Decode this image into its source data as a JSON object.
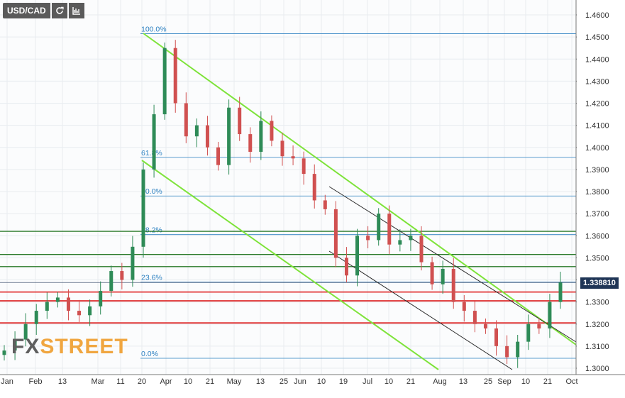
{
  "symbol": "USD/CAD",
  "toolbar": {
    "refresh_icon": "refresh-icon",
    "indicator_icon": "chart-settings-icon"
  },
  "logo": {
    "text_main": "FX",
    "text_accent": "STREET"
  },
  "current_price": "1.338810",
  "colors": {
    "up": "#2e8b57",
    "down": "#d05050",
    "grid": "#e8ecf0",
    "channel": "#7ee33a",
    "channel_dark": "#2b2b2b",
    "fib": "#2a7fc0",
    "support_red": "#dd1111",
    "resist_green": "#2a7a2a",
    "price_tag": "#1f3556"
  },
  "chart_data": {
    "type": "candlestick",
    "y_ticks": [
      "1.4600",
      "1.4500",
      "1.4400",
      "1.4300",
      "1.4200",
      "1.4100",
      "1.4000",
      "1.3900",
      "1.3800",
      "1.3700",
      "1.3600",
      "1.3500",
      "1.3400",
      "1.3300",
      "1.3200",
      "1.3100",
      "1.3000"
    ],
    "x_ticks": [
      "Jan",
      "Feb",
      "13",
      "Mar",
      "11",
      "20",
      "Apr",
      "10",
      "21",
      "May",
      "13",
      "25",
      "Jun",
      "10",
      "19",
      "Jul",
      "10",
      "21",
      "Aug",
      "13",
      "25",
      "Sep",
      "10",
      "21",
      "Oct"
    ],
    "fib_levels": [
      {
        "label": "100.0%",
        "value": 1.4515
      },
      {
        "label": "61.8%",
        "value": 1.3955
      },
      {
        "label": "50.0%",
        "value": 1.378
      },
      {
        "label": "38.2%",
        "value": 1.3605
      },
      {
        "label": "23.6%",
        "value": 1.339
      },
      {
        "label": "0.0%",
        "value": 1.3045
      }
    ],
    "green_levels": [
      1.362,
      1.3515,
      1.346
    ],
    "red_levels": [
      1.3345,
      1.3305,
      1.3205
    ],
    "last_price": 1.33881,
    "closes": [
      1.308,
      1.313,
      1.32,
      1.326,
      1.33,
      1.332,
      1.326,
      1.324,
      1.328,
      1.335,
      1.344,
      1.34,
      1.355,
      1.39,
      1.415,
      1.445,
      1.42,
      1.405,
      1.41,
      1.4,
      1.392,
      1.418,
      1.406,
      1.398,
      1.412,
      1.403,
      1.396,
      1.395,
      1.388,
      1.376,
      1.372,
      1.35,
      1.342,
      1.36,
      1.358,
      1.37,
      1.356,
      1.358,
      1.36,
      1.348,
      1.338,
      1.345,
      1.33,
      1.326,
      1.32,
      1.318,
      1.31,
      1.305,
      1.312,
      1.32,
      1.318,
      1.33,
      1.3388
    ]
  }
}
